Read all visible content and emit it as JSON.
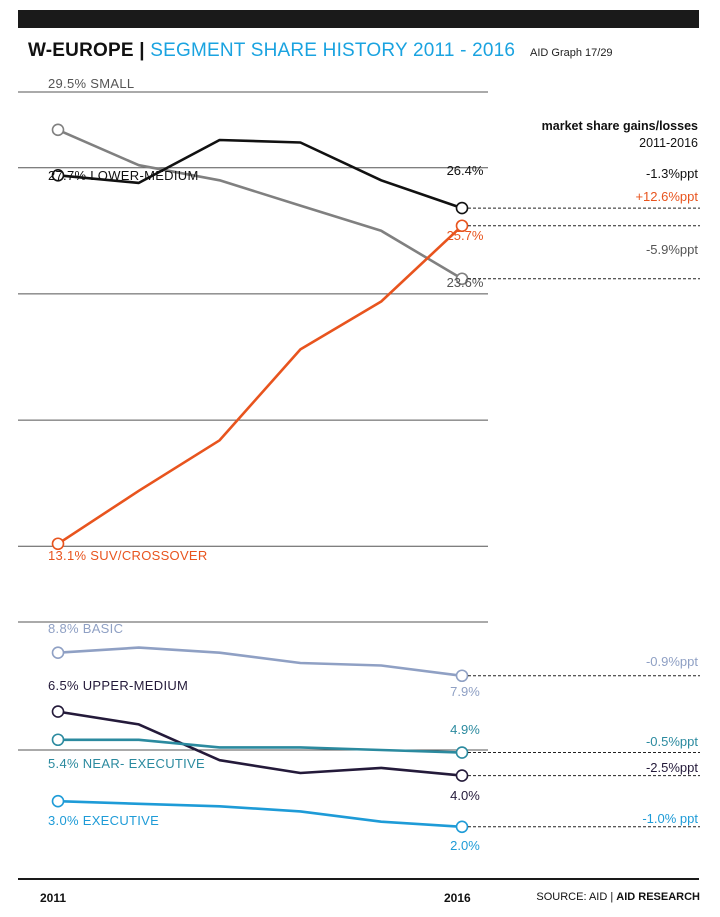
{
  "header": {
    "region": "W-EUROPE",
    "separator": "|",
    "subtitle": "SEGMENT SHARE HISTORY 2011 - 2016",
    "graph_ref": "AID Graph 17/29"
  },
  "gains_header": {
    "line1": "market share gains/losses",
    "line2": "2011-2016"
  },
  "footer": {
    "x_start": "2011",
    "x_end": "2016",
    "source_prefix": "SOURCE: AID | ",
    "source_bold": "AID RESEARCH"
  },
  "colors": {
    "small": "#808080",
    "lower_medium": "#111111",
    "suv": "#e8541e",
    "basic": "#8fa0c4",
    "upper_medium": "#241a3a",
    "near_executive": "#2b8a9f",
    "executive": "#1e9bd7"
  },
  "chart_data": {
    "type": "line",
    "title": "W-EUROPE | SEGMENT SHARE HISTORY 2011 - 2016",
    "x": [
      2011,
      2012,
      2013,
      2014,
      2015,
      2016
    ],
    "xlabel": "",
    "ylabel": "",
    "grid": true,
    "legend": "direct labels",
    "panels": [
      {
        "name": "upper",
        "ylim": [
          10,
          31
        ]
      },
      {
        "name": "lower",
        "ylim": [
          0,
          10
        ]
      }
    ],
    "series": [
      {
        "key": "small",
        "panel": "upper",
        "name": "SMALL",
        "values": [
          29.5,
          28.1,
          27.5,
          26.5,
          25.5,
          23.6
        ],
        "start_label": "29.5%",
        "end_label": "23.6%",
        "change": "-5.9%ppt"
      },
      {
        "key": "lower_medium",
        "panel": "upper",
        "name": "LOWER-MEDIUM",
        "values": [
          27.7,
          27.4,
          29.1,
          29.0,
          27.5,
          26.4
        ],
        "start_label": "27.7%",
        "end_label": "26.4%",
        "change": "-1.3%ppt"
      },
      {
        "key": "suv",
        "panel": "upper",
        "name": "SUV/CROSSOVER",
        "values": [
          13.1,
          15.2,
          17.2,
          20.8,
          22.7,
          25.7
        ],
        "start_label": "13.1%",
        "end_label": "25.7%",
        "change": "+12.6%ppt"
      },
      {
        "key": "basic",
        "panel": "lower",
        "name": "BASIC",
        "values": [
          8.8,
          9.0,
          8.8,
          8.4,
          8.3,
          7.9
        ],
        "start_label": "8.8%",
        "end_label": "7.9%",
        "change": "-0.9%ppt"
      },
      {
        "key": "upper_medium",
        "panel": "lower",
        "name": "UPPER-MEDIUM",
        "values": [
          6.5,
          6.0,
          4.6,
          4.1,
          4.3,
          4.0
        ],
        "start_label": "6.5%",
        "end_label": "4.0%",
        "change": "-2.5%ppt"
      },
      {
        "key": "near_executive",
        "panel": "lower",
        "name": "NEAR- EXECUTIVE",
        "values": [
          5.4,
          5.4,
          5.1,
          5.1,
          5.0,
          4.9
        ],
        "start_label": "5.4%",
        "end_label": "4.9%",
        "change": "-0.5%ppt"
      },
      {
        "key": "executive",
        "panel": "lower",
        "name": "EXECUTIVE",
        "values": [
          3.0,
          2.9,
          2.8,
          2.6,
          2.2,
          2.0
        ],
        "start_label": "3.0%",
        "end_label": "2.0%",
        "change": "-1.0% ppt"
      }
    ]
  }
}
